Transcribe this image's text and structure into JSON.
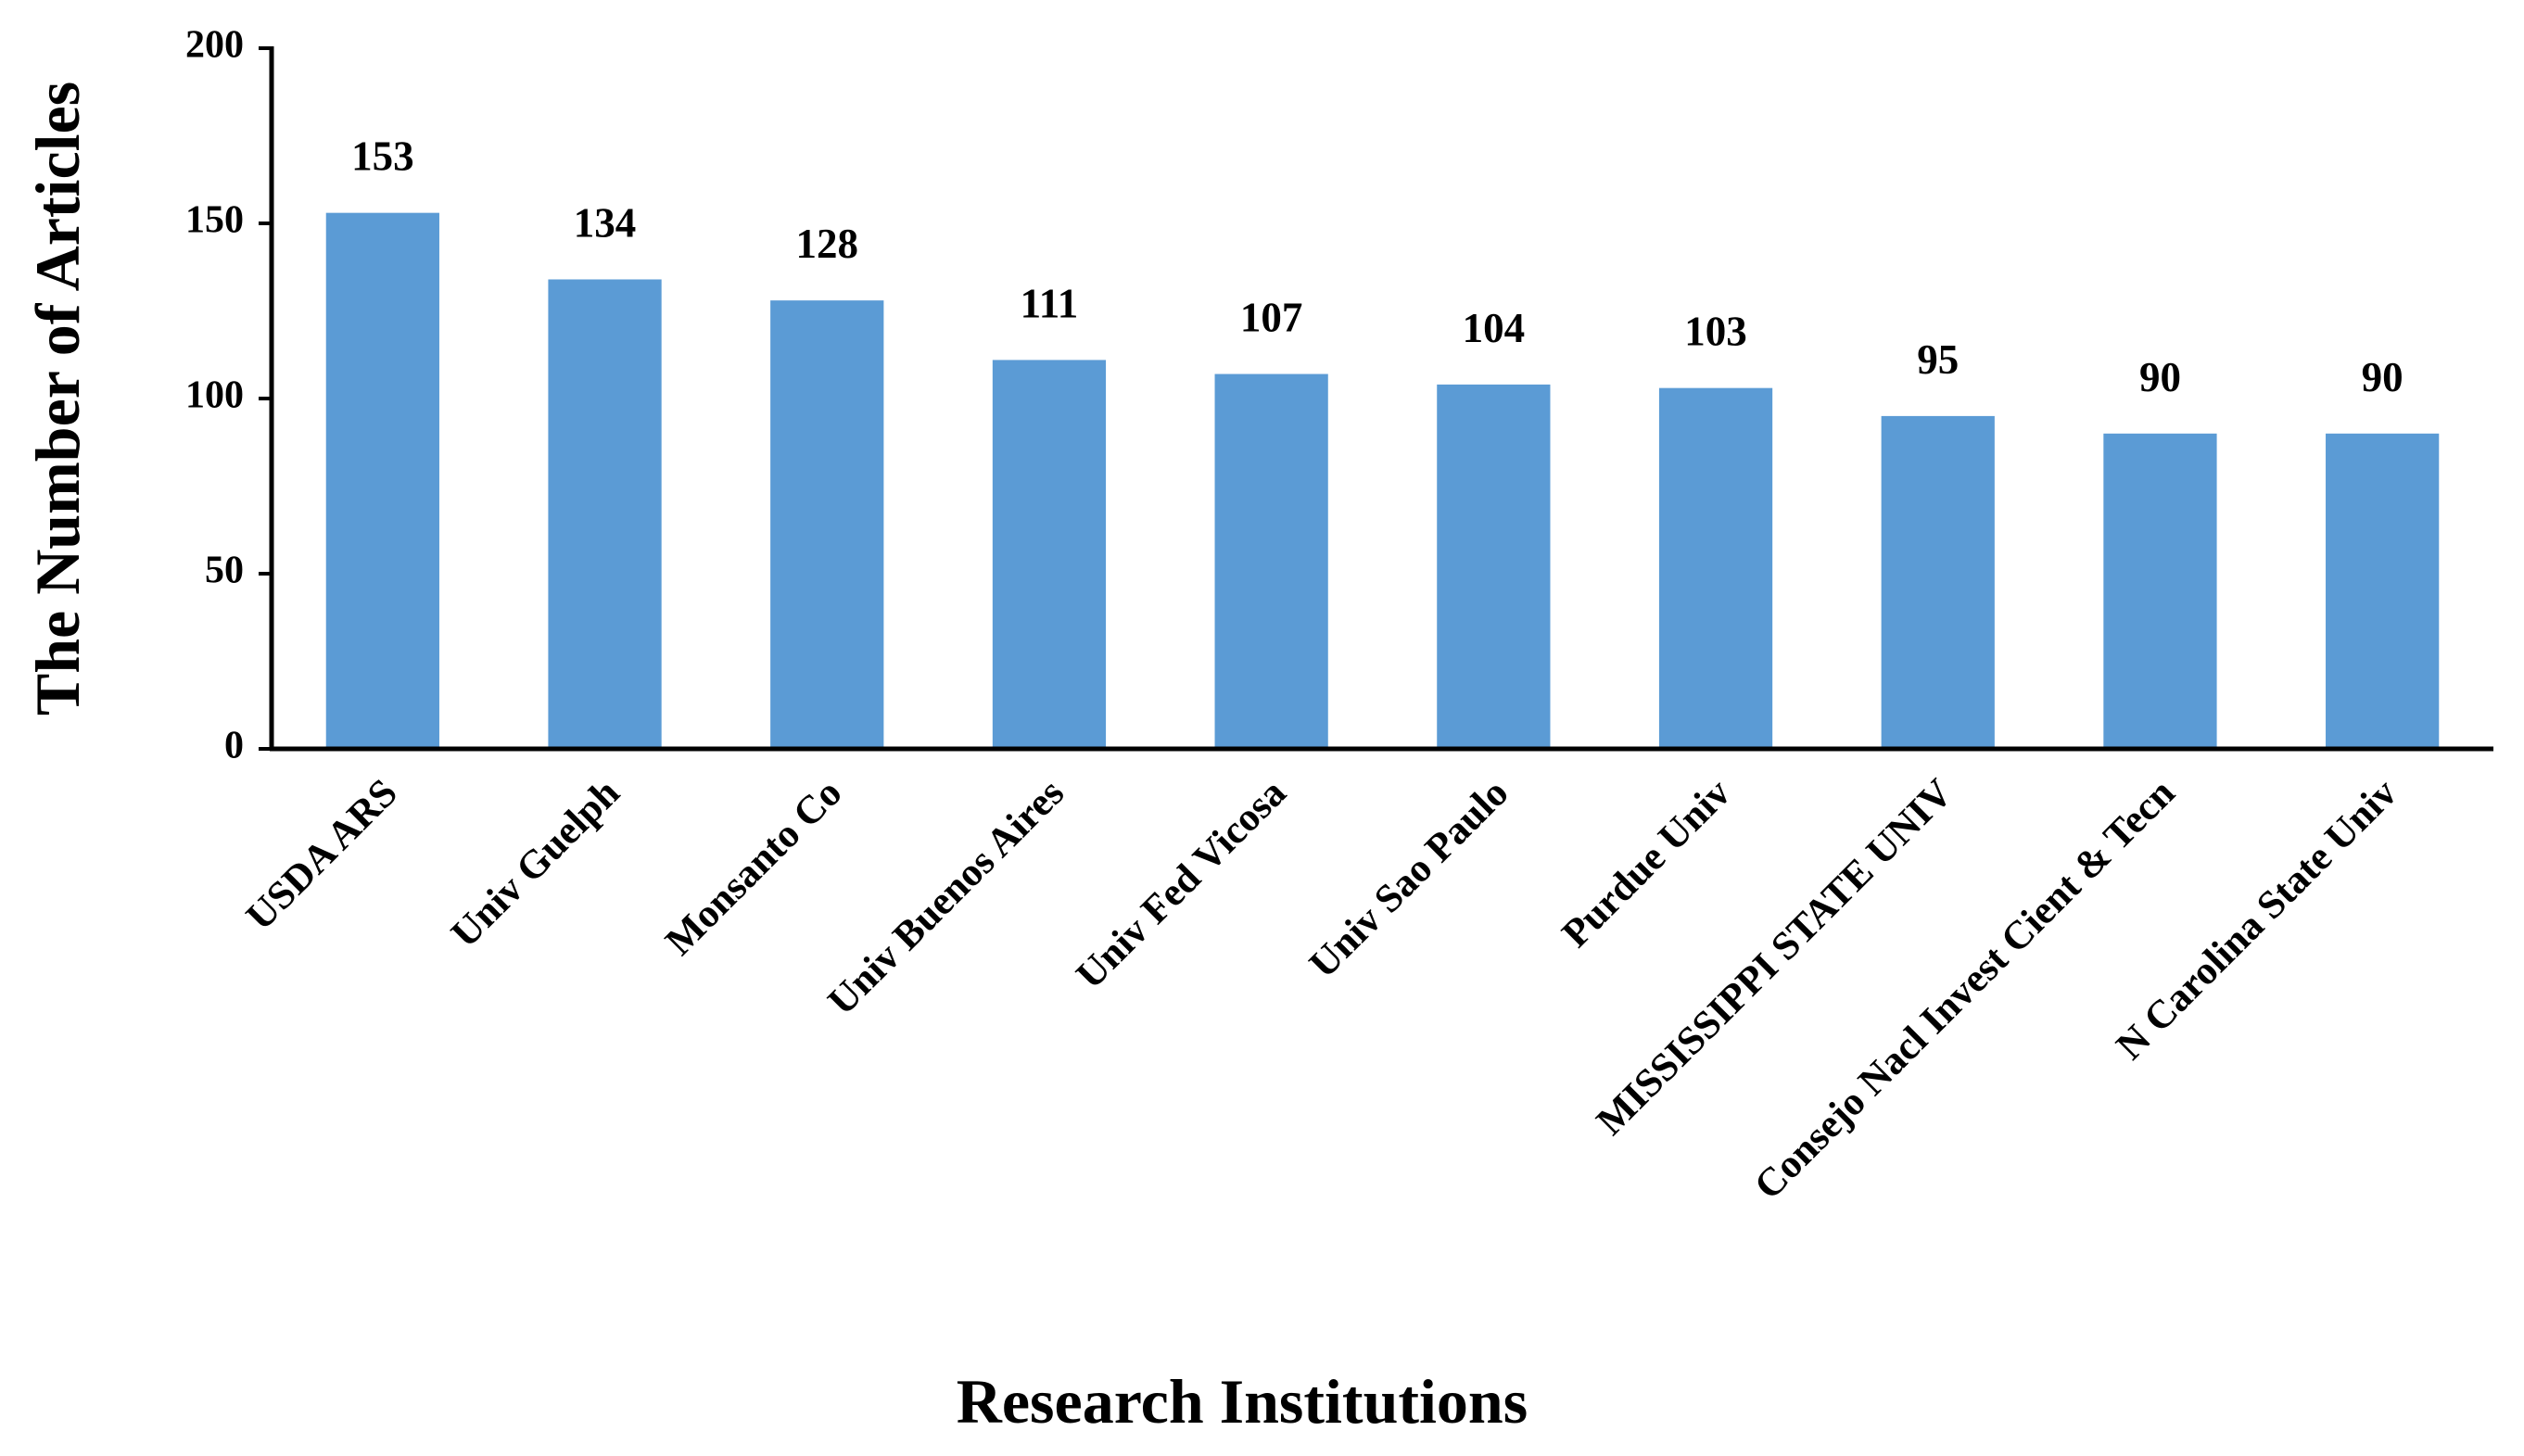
{
  "chart_data": {
    "type": "bar",
    "x_label": "Research Institutions",
    "y_label": "The Number of Articles",
    "categories": [
      "USDA ARS",
      "Univ Guelph",
      "Monsanto Co",
      "Univ Buenos Aires",
      "Univ Fed Vicosa",
      "Univ Sao Paulo",
      "Purdue Univ",
      "MISSISSIPPI STATE UNIV",
      "Consejo Nacl Invest Cient & Tecn",
      "N Carolina State Univ"
    ],
    "values": [
      153,
      134,
      128,
      111,
      107,
      104,
      103,
      95,
      90,
      90
    ],
    "color": "#5b9bd5",
    "ylim": [
      0,
      200
    ],
    "yticks": [
      0,
      50,
      100,
      150,
      200
    ],
    "grid": false
  }
}
